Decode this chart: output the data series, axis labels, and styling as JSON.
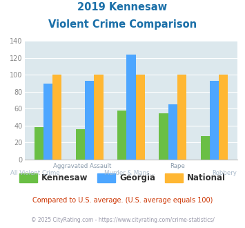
{
  "title_line1": "2019 Kennesaw",
  "title_line2": "Violent Crime Comparison",
  "categories": [
    "All Violent Crime",
    "Aggravated Assault",
    "Murder & Mans...",
    "Rape",
    "Robbery"
  ],
  "cat_labels_top": [
    "",
    "Aggravated Assault",
    "",
    "Rape",
    ""
  ],
  "cat_labels_bot": [
    "All Violent Crime",
    "",
    "Murder & Mans...",
    "",
    "Robbery"
  ],
  "kennesaw": [
    38,
    36,
    58,
    55,
    28
  ],
  "georgia": [
    90,
    93,
    124,
    65,
    93
  ],
  "national": [
    100,
    100,
    100,
    100,
    100
  ],
  "color_kennesaw": "#6abf45",
  "color_georgia": "#4da6ff",
  "color_national": "#ffb733",
  "ylim": [
    0,
    140
  ],
  "yticks": [
    0,
    20,
    40,
    60,
    80,
    100,
    120,
    140
  ],
  "plot_bg": "#dce8ed",
  "title_color": "#1a6fa8",
  "xlabel_color_top": "#8899aa",
  "xlabel_color_bot": "#aabbcc",
  "note_text": "Compared to U.S. average. (U.S. average equals 100)",
  "note_color": "#cc3300",
  "copyright_text": "© 2025 CityRating.com - https://www.cityrating.com/crime-statistics/",
  "copyright_color": "#9999aa",
  "legend_labels": [
    "Kennesaw",
    "Georgia",
    "National"
  ],
  "bar_width": 0.22,
  "grid_color": "#ffffff"
}
